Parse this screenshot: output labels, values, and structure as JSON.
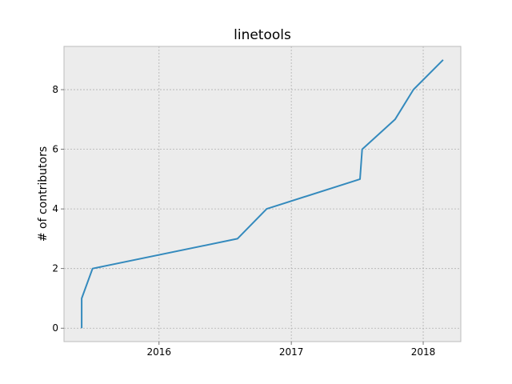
{
  "chart_data": {
    "type": "line",
    "title": "linetools",
    "xlabel": "",
    "ylabel": "# of contributors",
    "x_ticks": [
      "2016",
      "2017",
      "2018"
    ],
    "y_ticks": [
      "0",
      "2",
      "4",
      "6",
      "8"
    ],
    "x_tick_values": [
      "2016-01-01",
      "2017-01-01",
      "2018-01-01"
    ],
    "y_tick_values": [
      0,
      2,
      4,
      6,
      8
    ],
    "xlim": [
      "2015-04-13",
      "2018-04-15"
    ],
    "ylim": [
      -0.45,
      9.45
    ],
    "grid": true,
    "background": "#ececec",
    "line_color": "#348abd",
    "series": [
      {
        "x": [
          "2015-06-01",
          "2015-06-01",
          "2015-07-01",
          "2016-08-05",
          "2016-10-25",
          "2017-07-10",
          "2017-07-16",
          "2017-10-15",
          "2017-12-05",
          "2018-02-25"
        ],
        "y": [
          0,
          1,
          2,
          3,
          4,
          5,
          6,
          7,
          8,
          9
        ]
      }
    ]
  }
}
